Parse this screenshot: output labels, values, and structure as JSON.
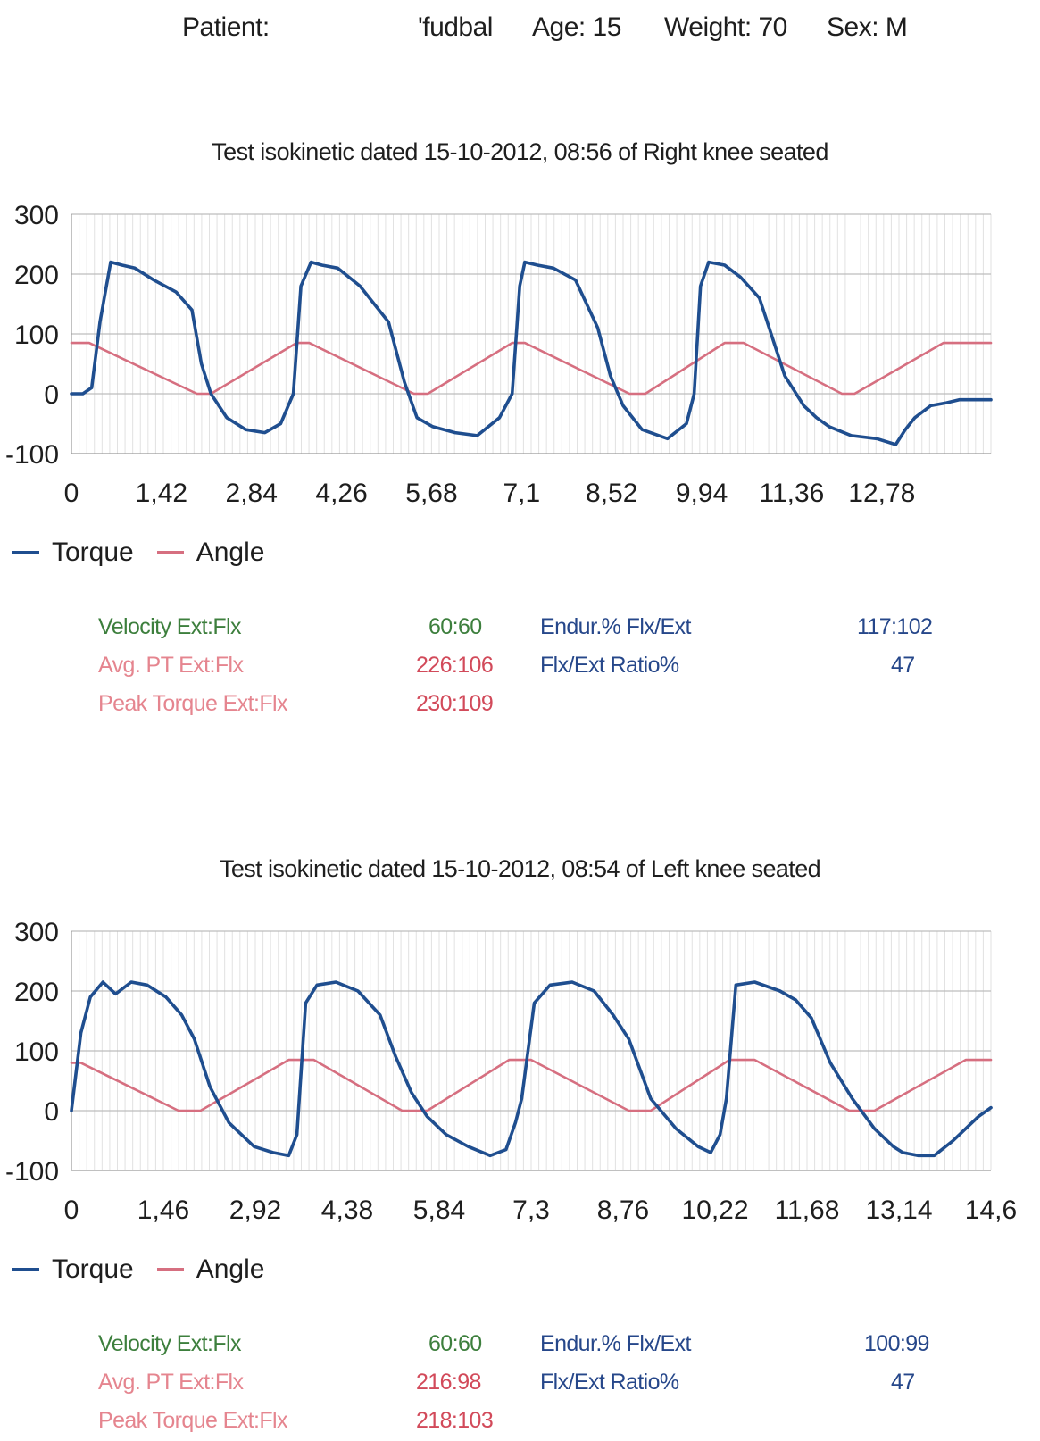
{
  "header": {
    "patient_label": "Patient:",
    "patient_name": "'fudbal",
    "age": "Age: 15",
    "weight": "Weight: 70",
    "sex": "Sex: M"
  },
  "colors": {
    "torque": "#1f4e8f",
    "angle": "#d66f80",
    "grid": "#c8c8c8"
  },
  "chart_data": [
    {
      "type": "line",
      "title": "Test isokinetic dated 15-10-2012, 08:56 of Right knee seated",
      "xlabel": "",
      "ylabel": "",
      "xlim": [
        0,
        14.5
      ],
      "ylim": [
        -100,
        300
      ],
      "yticks": [
        300,
        200,
        100,
        0,
        -100
      ],
      "xtick_values": [
        0,
        1.42,
        2.84,
        4.26,
        5.68,
        7.1,
        8.52,
        9.94,
        11.36,
        12.78
      ],
      "xtick_labels": [
        "0",
        "1,42",
        "2,84",
        "4,26",
        "5,68",
        "7,1",
        "8,52",
        "9,94",
        "11,36",
        "12,78"
      ],
      "grid": true,
      "legend": "bottom-left",
      "series": [
        {
          "name": "Torque",
          "color": "#1f4e8f",
          "x": [
            0,
            0.18,
            0.32,
            0.45,
            0.62,
            0.8,
            1.0,
            1.3,
            1.65,
            1.9,
            2.05,
            2.2,
            2.45,
            2.75,
            3.05,
            3.3,
            3.5,
            3.62,
            3.78,
            3.95,
            4.2,
            4.55,
            5.0,
            5.25,
            5.45,
            5.7,
            6.05,
            6.4,
            6.75,
            6.95,
            7.07,
            7.15,
            7.35,
            7.6,
            7.95,
            8.3,
            8.5,
            8.7,
            9.0,
            9.4,
            9.7,
            9.82,
            9.92,
            10.05,
            10.3,
            10.55,
            10.85,
            11.25,
            11.55,
            11.75,
            11.95,
            12.3,
            12.7,
            13.0,
            13.15,
            13.3,
            13.55,
            13.8,
            14.0,
            14.5
          ],
          "y": [
            0,
            0,
            10,
            120,
            220,
            215,
            210,
            190,
            170,
            140,
            50,
            0,
            -40,
            -60,
            -65,
            -50,
            0,
            180,
            220,
            215,
            210,
            180,
            120,
            20,
            -40,
            -55,
            -65,
            -70,
            -40,
            0,
            180,
            220,
            215,
            210,
            190,
            110,
            30,
            -20,
            -60,
            -75,
            -50,
            0,
            180,
            220,
            215,
            195,
            160,
            30,
            -20,
            -40,
            -55,
            -70,
            -75,
            -85,
            -60,
            -40,
            -20,
            -15,
            -10,
            -10
          ]
        },
        {
          "name": "Angle",
          "color": "#d66f80",
          "x": [
            0,
            0.28,
            1.98,
            2.2,
            3.55,
            3.75,
            5.4,
            5.62,
            6.95,
            7.15,
            8.8,
            9.05,
            10.3,
            10.6,
            12.15,
            12.35,
            13.75,
            14.5
          ],
          "y": [
            85,
            85,
            0,
            0,
            85,
            85,
            0,
            0,
            85,
            85,
            0,
            0,
            85,
            85,
            0,
            0,
            85,
            85
          ]
        }
      ]
    },
    {
      "type": "line",
      "title": "Test isokinetic dated 15-10-2012, 08:54 of Left knee seated",
      "xlabel": "",
      "ylabel": "",
      "xlim": [
        0,
        14.6
      ],
      "ylim": [
        -100,
        300
      ],
      "yticks": [
        300,
        200,
        100,
        0,
        -100
      ],
      "xtick_values": [
        0,
        1.46,
        2.92,
        4.38,
        5.84,
        7.3,
        8.76,
        10.22,
        11.68,
        13.14,
        14.6
      ],
      "xtick_labels": [
        "0",
        "1,46",
        "2,92",
        "4,38",
        "5,84",
        "7,3",
        "8,76",
        "10,22",
        "11,68",
        "13,14",
        "14,6"
      ],
      "grid": true,
      "legend": "bottom-left",
      "series": [
        {
          "name": "Torque",
          "color": "#1f4e8f",
          "x": [
            0,
            0.15,
            0.3,
            0.5,
            0.7,
            0.95,
            1.2,
            1.5,
            1.75,
            1.95,
            2.2,
            2.5,
            2.9,
            3.2,
            3.45,
            3.58,
            3.72,
            3.9,
            4.2,
            4.55,
            4.9,
            5.15,
            5.4,
            5.65,
            5.95,
            6.3,
            6.65,
            6.9,
            7.05,
            7.15,
            7.35,
            7.6,
            7.95,
            8.3,
            8.6,
            8.85,
            9.2,
            9.6,
            9.95,
            10.15,
            10.3,
            10.4,
            10.55,
            10.85,
            11.25,
            11.5,
            11.75,
            12.05,
            12.4,
            12.75,
            13.05,
            13.2,
            13.45,
            13.7,
            14.0,
            14.4,
            14.6
          ],
          "y": [
            0,
            130,
            190,
            215,
            195,
            215,
            210,
            190,
            160,
            120,
            40,
            -20,
            -60,
            -70,
            -75,
            -40,
            180,
            210,
            215,
            200,
            160,
            90,
            30,
            -10,
            -40,
            -60,
            -75,
            -65,
            -20,
            20,
            180,
            210,
            215,
            200,
            160,
            120,
            20,
            -30,
            -60,
            -70,
            -40,
            20,
            210,
            215,
            200,
            185,
            155,
            80,
            20,
            -30,
            -60,
            -70,
            -75,
            -75,
            -50,
            -10,
            5
          ]
        },
        {
          "name": "Angle",
          "color": "#d66f80",
          "x": [
            0,
            0.15,
            1.7,
            2.05,
            3.45,
            3.85,
            5.25,
            5.65,
            6.95,
            7.3,
            8.85,
            9.2,
            10.45,
            10.85,
            12.35,
            12.75,
            14.2,
            14.6
          ],
          "y": [
            80,
            80,
            0,
            0,
            85,
            85,
            0,
            0,
            85,
            85,
            0,
            0,
            85,
            85,
            0,
            0,
            85,
            85
          ]
        }
      ]
    }
  ],
  "stats": [
    {
      "velocity_label": "Velocity  Ext:Flx",
      "velocity_value": "60:60",
      "avgpt_label": "Avg. PT Ext:Flx",
      "avgpt_value": "226:106",
      "peak_label": "Peak Torque  Ext:Flx",
      "peak_value": "230:109",
      "endur_label": "Endur.%  Flx/Ext",
      "endur_value": "117:102",
      "ratio_label": "Flx/Ext Ratio%",
      "ratio_value": "47"
    },
    {
      "velocity_label": "Velocity  Ext:Flx",
      "velocity_value": "60:60",
      "avgpt_label": "Avg. PT Ext:Flx",
      "avgpt_value": "216:98",
      "peak_label": "Peak Torque  Ext:Flx",
      "peak_value": "218:103",
      "endur_label": "Endur.%  Flx/Ext",
      "endur_value": "100:99",
      "ratio_label": "Flx/Ext Ratio%",
      "ratio_value": "47"
    }
  ]
}
